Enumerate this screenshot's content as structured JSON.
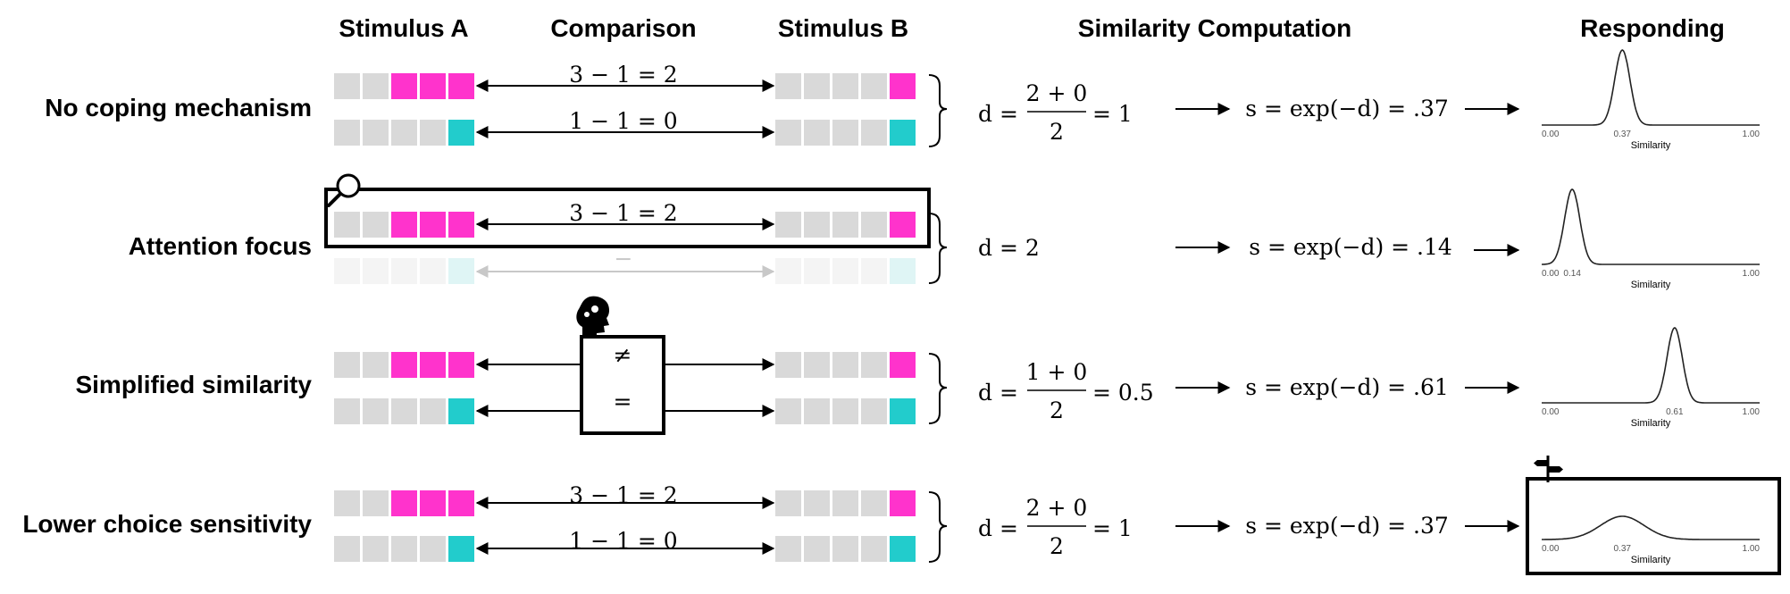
{
  "headers": {
    "stimulus_a": "Stimulus A",
    "comparison": "Comparison",
    "stimulus_b": "Stimulus B",
    "similarity": "Similarity Computation",
    "responding": "Responding"
  },
  "colors": {
    "magenta": "#ff33cc",
    "cyan": "#22cccc",
    "gray": "#d9d9d9",
    "faded_gray": "#f4f4f4",
    "faded_cyan": "#dff5f5",
    "faded_arrow": "#c8c8c8"
  },
  "icons": {
    "attention": "magnifier-icon",
    "simplified": "head-gears-icon",
    "lower_choice": "signpost-icon"
  },
  "rows": [
    {
      "label": "No coping mechanism",
      "comparisons": [
        "3 − 1 = 2",
        "1 − 1 = 0"
      ],
      "distance": {
        "lhs": "d =",
        "num": "2 + 0",
        "den": "2",
        "rhs": "= 1"
      },
      "similarity": "s = exp(−d) = .37",
      "response": {
        "peak": 0.37,
        "peak_label": "0.37",
        "xmin": "0.00",
        "xmax": "1.00",
        "xlabel": "Similarity"
      }
    },
    {
      "label": "Attention focus",
      "comparisons": [
        "3 − 1 = 2",
        "−"
      ],
      "distance": {
        "lhs": "d = 2"
      },
      "similarity": "s = exp(−d) = .14",
      "response": {
        "peak": 0.14,
        "peak_label": "0.14",
        "xmin": "0.00",
        "xmax": "1.00",
        "xlabel": "Similarity"
      }
    },
    {
      "label": "Simplified similarity",
      "comparisons": [
        "≠",
        "="
      ],
      "distance": {
        "lhs": "d =",
        "num": "1 + 0",
        "den": "2",
        "rhs": "= 0.5"
      },
      "similarity": "s = exp(−d) = .61",
      "response": {
        "peak": 0.61,
        "peak_label": "0.61",
        "xmin": "0.00",
        "xmax": "1.00",
        "xlabel": "Similarity"
      }
    },
    {
      "label": "Lower choice sensitivity",
      "comparisons": [
        "3 − 1 = 2",
        "1 − 1 = 0"
      ],
      "distance": {
        "lhs": "d =",
        "num": "2 + 0",
        "den": "2",
        "rhs": "= 1"
      },
      "similarity": "s = exp(−d) = .37",
      "response": {
        "peak": 0.37,
        "peak_label": "0.37",
        "xmin": "0.00",
        "xmax": "1.00",
        "xlabel": "Similarity"
      }
    }
  ]
}
